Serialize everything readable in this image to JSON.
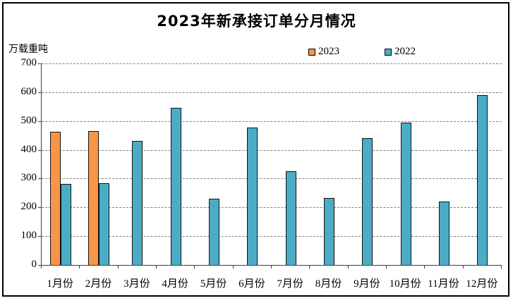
{
  "title": "2023年新承接订单分月情况",
  "y_axis_unit": "万载重吨",
  "legend": [
    {
      "label": "2023",
      "color": "#F79646"
    },
    {
      "label": "2022",
      "color": "#4BACC6"
    }
  ],
  "chart_data": {
    "type": "bar",
    "title": "2023年新承接订单分月情况",
    "ylabel": "万载重吨",
    "xlabel": "",
    "ylim": [
      0,
      700
    ],
    "ytick_interval": 100,
    "grid": "horizontal-dashed",
    "legend_position": "top",
    "categories": [
      "1月份",
      "2月份",
      "3月份",
      "4月份",
      "5月份",
      "6月份",
      "7月份",
      "8月份",
      "9月份",
      "10月份",
      "11月份",
      "12月份"
    ],
    "series": [
      {
        "name": "2023",
        "color": "#F79646",
        "values": [
          462,
          464,
          null,
          null,
          null,
          null,
          null,
          null,
          null,
          null,
          null,
          null
        ]
      },
      {
        "name": "2022",
        "color": "#4BACC6",
        "values": [
          282,
          283,
          430,
          547,
          230,
          477,
          326,
          232,
          441,
          494,
          220,
          590
        ]
      }
    ]
  }
}
